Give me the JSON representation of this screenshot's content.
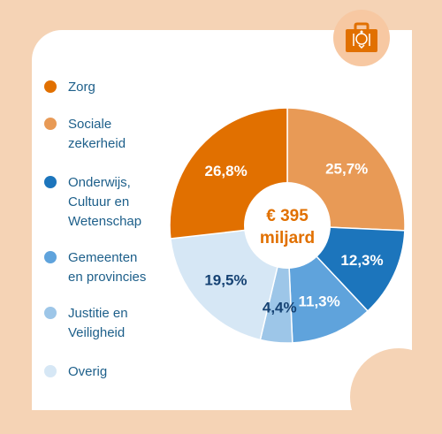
{
  "legend": [
    {
      "label": "Zorg",
      "color": "#e17000"
    },
    {
      "label": "Sociale\nzekerheid",
      "color": "#e89a56"
    },
    {
      "label": "Onderwijs,\nCultuur en\nWetenschap",
      "color": "#1c75bc"
    },
    {
      "label": "Gemeenten\nen provincies",
      "color": "#5fa3dc"
    },
    {
      "label": "Justitie en\nVeiligheid",
      "color": "#9dc6e8"
    },
    {
      "label": "Overig",
      "color": "#d6e7f5"
    }
  ],
  "badge_icon": "government-coat-of-arms-icon",
  "chart_data": {
    "type": "pie",
    "center_label": [
      "€ 395",
      "miljard"
    ],
    "slices": [
      {
        "label": "Sociale zekerheid",
        "value": 25.7,
        "display": "25,7%",
        "color": "#e89a56",
        "text_color": "#ffffff"
      },
      {
        "label": "Onderwijs, Cultuur en Wetenschap",
        "value": 12.3,
        "display": "12,3%",
        "color": "#1c75bc",
        "text_color": "#ffffff"
      },
      {
        "label": "Gemeenten en provincies",
        "value": 11.3,
        "display": "11,3%",
        "color": "#5fa3dc",
        "text_color": "#ffffff"
      },
      {
        "label": "Justitie en Veiligheid",
        "value": 4.4,
        "display": "4,4%",
        "color": "#9dc6e8",
        "text_color": "#154273"
      },
      {
        "label": "Overig",
        "value": 19.5,
        "display": "19,5%",
        "color": "#d6e7f5",
        "text_color": "#154273"
      },
      {
        "label": "Zorg",
        "value": 26.8,
        "display": "26,8%",
        "color": "#e17000",
        "text_color": "#ffffff"
      }
    ]
  }
}
